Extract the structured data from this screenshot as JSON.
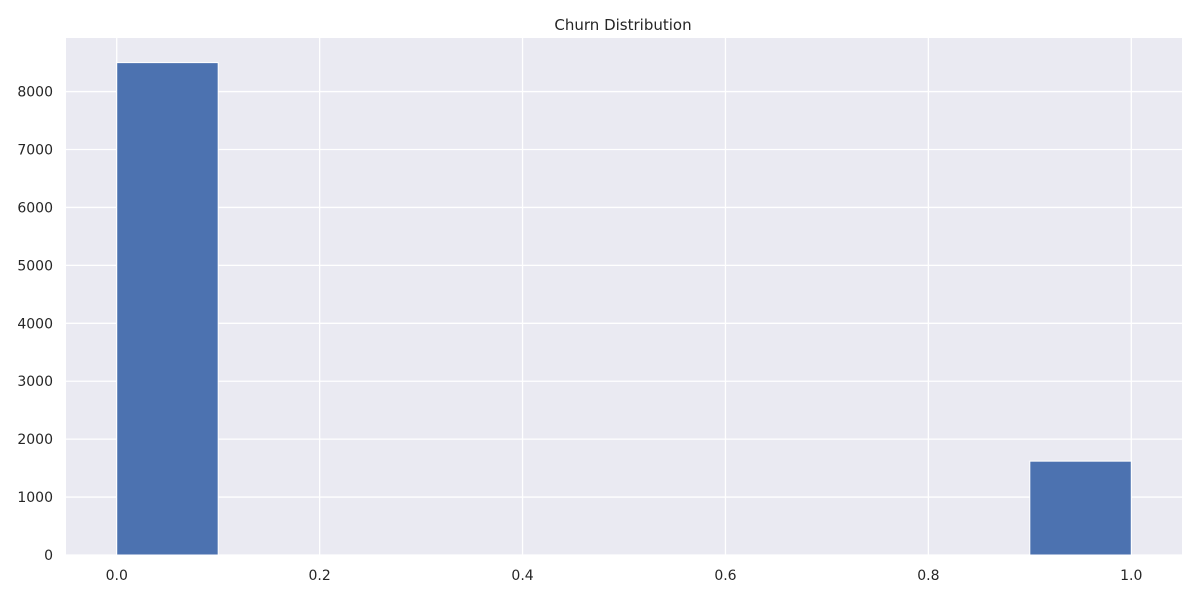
{
  "chart_data": {
    "type": "bar",
    "title": "Churn Distribution",
    "xlabel": "",
    "ylabel": "",
    "xlim": [
      -0.05,
      1.05
    ],
    "ylim": [
      0,
      8925
    ],
    "grid": true,
    "legend": "none",
    "bar_color": "#4c72b0",
    "background_color": "#eaeaf2",
    "grid_color": "#ffffff",
    "bins": [
      {
        "x0": 0.0,
        "x1": 0.1,
        "count": 8500
      },
      {
        "x0": 0.9,
        "x1": 1.0,
        "count": 1620
      }
    ],
    "xticks": [
      0.0,
      0.2,
      0.4,
      0.6,
      0.8,
      1.0
    ],
    "xtick_labels": [
      "0.0",
      "0.2",
      "0.4",
      "0.6",
      "0.8",
      "1.0"
    ],
    "yticks": [
      0,
      1000,
      2000,
      3000,
      4000,
      5000,
      6000,
      7000,
      8000
    ],
    "ytick_labels": [
      "0",
      "1000",
      "2000",
      "3000",
      "4000",
      "5000",
      "6000",
      "7000",
      "8000"
    ]
  }
}
